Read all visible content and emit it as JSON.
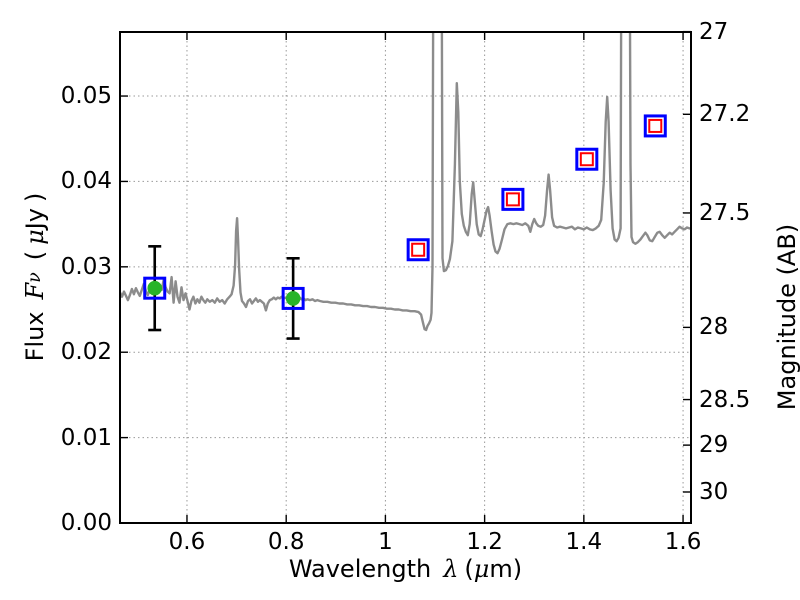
{
  "figure": {
    "background": "#ffffff",
    "axes_edge_color": "#000000",
    "grid_color": "#9a9a9a"
  },
  "labels": {
    "xlabel": {
      "word": "Wavelength",
      "lambda": "λ",
      "open": "(",
      "mu": "μ",
      "close": "m)"
    },
    "ylabel_left": {
      "word": "Flux",
      "f": "F",
      "nu": "ν",
      "open": "(",
      "mu": "μ",
      "jy": "Jy",
      "close": ")"
    },
    "ylabel_right": "Magnitude (AB)"
  },
  "chart_data": {
    "type": "line",
    "title": "",
    "xlabel": "Wavelength λ (μm)",
    "ylabel": "Flux Fν ( μJy )",
    "ylabel_right": "Magnitude (AB)",
    "xlim": [
      0.465,
      1.616
    ],
    "ylim": [
      0.0,
      0.0575
    ],
    "grid": "dotted",
    "x_ticks": [
      0.6,
      0.8,
      1.0,
      1.2,
      1.4,
      1.6
    ],
    "x_tick_labels": [
      "0.6",
      "0.8",
      "1",
      "1.2",
      "1.4",
      "1.6"
    ],
    "y_ticks_left": [
      0.0,
      0.01,
      0.02,
      0.03,
      0.04,
      0.05
    ],
    "y_tick_labels_left": [
      "0.00",
      "0.01",
      "0.02",
      "0.03",
      "0.04",
      "0.05"
    ],
    "y_ticks_right_mag": [
      27,
      27.2,
      27.5,
      28,
      28.5,
      29,
      30
    ],
    "y_tick_labels_right": [
      "27",
      "27.2",
      "27.5",
      "28",
      "28.5",
      "29",
      "30"
    ],
    "series": [
      {
        "name": "model-spectrum",
        "type": "line",
        "color": "#8c8c8c",
        "linewidth": 2.4,
        "points": [
          [
            0.465,
            0.027
          ],
          [
            0.469,
            0.0265
          ],
          [
            0.473,
            0.0271
          ],
          [
            0.477,
            0.0266
          ],
          [
            0.481,
            0.0261
          ],
          [
            0.485,
            0.0267
          ],
          [
            0.489,
            0.0274
          ],
          [
            0.493,
            0.0268
          ],
          [
            0.497,
            0.0275
          ],
          [
            0.501,
            0.027
          ],
          [
            0.505,
            0.0266
          ],
          [
            0.509,
            0.0273
          ],
          [
            0.513,
            0.028
          ],
          [
            0.517,
            0.0272
          ],
          [
            0.521,
            0.0267
          ],
          [
            0.525,
            0.0273
          ],
          [
            0.529,
            0.027
          ],
          [
            0.533,
            0.0275
          ],
          [
            0.537,
            0.0273
          ],
          [
            0.541,
            0.0271
          ],
          [
            0.545,
            0.0279
          ],
          [
            0.549,
            0.0273
          ],
          [
            0.553,
            0.0285
          ],
          [
            0.557,
            0.0276
          ],
          [
            0.561,
            0.0271
          ],
          [
            0.565,
            0.0269
          ],
          [
            0.569,
            0.0288
          ],
          [
            0.573,
            0.0258
          ],
          [
            0.577,
            0.0283
          ],
          [
            0.581,
            0.0265
          ],
          [
            0.585,
            0.0258
          ],
          [
            0.589,
            0.0276
          ],
          [
            0.593,
            0.0261
          ],
          [
            0.597,
            0.0269
          ],
          [
            0.601,
            0.026
          ],
          [
            0.605,
            0.025
          ],
          [
            0.609,
            0.026
          ],
          [
            0.613,
            0.0265
          ],
          [
            0.617,
            0.0257
          ],
          [
            0.621,
            0.0262
          ],
          [
            0.625,
            0.0258
          ],
          [
            0.629,
            0.0265
          ],
          [
            0.633,
            0.0261
          ],
          [
            0.637,
            0.0258
          ],
          [
            0.641,
            0.0262
          ],
          [
            0.646,
            0.0259
          ],
          [
            0.651,
            0.0261
          ],
          [
            0.656,
            0.0258
          ],
          [
            0.661,
            0.0263
          ],
          [
            0.666,
            0.0259
          ],
          [
            0.671,
            0.0261
          ],
          [
            0.676,
            0.0257
          ],
          [
            0.681,
            0.0262
          ],
          [
            0.686,
            0.0265
          ],
          [
            0.69,
            0.0268
          ],
          [
            0.694,
            0.0278
          ],
          [
            0.697,
            0.0302
          ],
          [
            0.699,
            0.0342
          ],
          [
            0.701,
            0.0357
          ],
          [
            0.703,
            0.0331
          ],
          [
            0.705,
            0.0298
          ],
          [
            0.708,
            0.027
          ],
          [
            0.711,
            0.026
          ],
          [
            0.715,
            0.0257
          ],
          [
            0.719,
            0.0253
          ],
          [
            0.723,
            0.026
          ],
          [
            0.727,
            0.0262
          ],
          [
            0.731,
            0.0257
          ],
          [
            0.735,
            0.026
          ],
          [
            0.739,
            0.0263
          ],
          [
            0.743,
            0.0259
          ],
          [
            0.747,
            0.0261
          ],
          [
            0.751,
            0.0259
          ],
          [
            0.755,
            0.0257
          ],
          [
            0.759,
            0.0249
          ],
          [
            0.763,
            0.0257
          ],
          [
            0.767,
            0.0261
          ],
          [
            0.771,
            0.0262
          ],
          [
            0.775,
            0.0264
          ],
          [
            0.779,
            0.0262
          ],
          [
            0.783,
            0.0264
          ],
          [
            0.787,
            0.0263
          ],
          [
            0.791,
            0.0265
          ],
          [
            0.795,
            0.0263
          ],
          [
            0.799,
            0.0264
          ],
          [
            0.803,
            0.0262
          ],
          [
            0.807,
            0.0264
          ],
          [
            0.811,
            0.0265
          ],
          [
            0.815,
            0.0264
          ],
          [
            0.819,
            0.0265
          ],
          [
            0.823,
            0.0263
          ],
          [
            0.827,
            0.0264
          ],
          [
            0.831,
            0.0262
          ],
          [
            0.835,
            0.0263
          ],
          [
            0.839,
            0.0261
          ],
          [
            0.843,
            0.0262
          ],
          [
            0.848,
            0.0261
          ],
          [
            0.853,
            0.0262
          ],
          [
            0.858,
            0.026
          ],
          [
            0.863,
            0.0261
          ],
          [
            0.868,
            0.026
          ],
          [
            0.875,
            0.0259
          ],
          [
            0.883,
            0.0259
          ],
          [
            0.891,
            0.0258
          ],
          [
            0.899,
            0.0258
          ],
          [
            0.907,
            0.0257
          ],
          [
            0.915,
            0.0257
          ],
          [
            0.923,
            0.0256
          ],
          [
            0.931,
            0.0256
          ],
          [
            0.939,
            0.0255
          ],
          [
            0.947,
            0.0255
          ],
          [
            0.955,
            0.0254
          ],
          [
            0.963,
            0.0254
          ],
          [
            0.971,
            0.0253
          ],
          [
            0.979,
            0.0253
          ],
          [
            0.987,
            0.0252
          ],
          [
            0.995,
            0.0252
          ],
          [
            1.003,
            0.0251
          ],
          [
            1.011,
            0.0251
          ],
          [
            1.019,
            0.025
          ],
          [
            1.027,
            0.025
          ],
          [
            1.035,
            0.0249
          ],
          [
            1.043,
            0.0249
          ],
          [
            1.051,
            0.0248
          ],
          [
            1.059,
            0.0248
          ],
          [
            1.067,
            0.0247
          ],
          [
            1.072,
            0.0244
          ],
          [
            1.076,
            0.0234
          ],
          [
            1.079,
            0.0227
          ],
          [
            1.082,
            0.0226
          ],
          [
            1.085,
            0.0231
          ],
          [
            1.088,
            0.0234
          ],
          [
            1.091,
            0.0238
          ],
          [
            1.093,
            0.0246
          ],
          [
            1.095,
            0.03
          ],
          [
            1.097,
            0.075
          ],
          [
            1.113,
            0.075
          ],
          [
            1.115,
            0.031
          ],
          [
            1.118,
            0.0295
          ],
          [
            1.122,
            0.0296
          ],
          [
            1.126,
            0.0301
          ],
          [
            1.13,
            0.0309
          ],
          [
            1.135,
            0.033
          ],
          [
            1.14,
            0.042
          ],
          [
            1.144,
            0.0515
          ],
          [
            1.147,
            0.0481
          ],
          [
            1.15,
            0.04
          ],
          [
            1.154,
            0.0362
          ],
          [
            1.158,
            0.0348
          ],
          [
            1.162,
            0.0341
          ],
          [
            1.166,
            0.0337
          ],
          [
            1.17,
            0.035
          ],
          [
            1.174,
            0.0385
          ],
          [
            1.177,
            0.0399
          ],
          [
            1.18,
            0.0378
          ],
          [
            1.184,
            0.035
          ],
          [
            1.188,
            0.0338
          ],
          [
            1.192,
            0.0336
          ],
          [
            1.196,
            0.0344
          ],
          [
            1.2,
            0.0355
          ],
          [
            1.204,
            0.0366
          ],
          [
            1.207,
            0.037
          ],
          [
            1.21,
            0.036
          ],
          [
            1.214,
            0.0342
          ],
          [
            1.218,
            0.0326
          ],
          [
            1.222,
            0.0318
          ],
          [
            1.226,
            0.0316
          ],
          [
            1.23,
            0.0321
          ],
          [
            1.235,
            0.0332
          ],
          [
            1.24,
            0.0344
          ],
          [
            1.246,
            0.035
          ],
          [
            1.252,
            0.0351
          ],
          [
            1.258,
            0.035
          ],
          [
            1.264,
            0.0351
          ],
          [
            1.27,
            0.035
          ],
          [
            1.276,
            0.0349
          ],
          [
            1.282,
            0.0351
          ],
          [
            1.288,
            0.0348
          ],
          [
            1.292,
            0.0341
          ],
          [
            1.296,
            0.035
          ],
          [
            1.3,
            0.0356
          ],
          [
            1.304,
            0.0351
          ],
          [
            1.308,
            0.0348
          ],
          [
            1.313,
            0.0347
          ],
          [
            1.318,
            0.0349
          ],
          [
            1.322,
            0.036
          ],
          [
            1.326,
            0.039
          ],
          [
            1.329,
            0.0408
          ],
          [
            1.332,
            0.039
          ],
          [
            1.336,
            0.0358
          ],
          [
            1.34,
            0.0348
          ],
          [
            1.346,
            0.0346
          ],
          [
            1.352,
            0.0347
          ],
          [
            1.358,
            0.0346
          ],
          [
            1.364,
            0.0345
          ],
          [
            1.37,
            0.0346
          ],
          [
            1.376,
            0.0347
          ],
          [
            1.382,
            0.0344
          ],
          [
            1.388,
            0.0346
          ],
          [
            1.394,
            0.0345
          ],
          [
            1.4,
            0.0344
          ],
          [
            1.406,
            0.0346
          ],
          [
            1.412,
            0.0344
          ],
          [
            1.418,
            0.0343
          ],
          [
            1.424,
            0.0345
          ],
          [
            1.43,
            0.0348
          ],
          [
            1.435,
            0.0355
          ],
          [
            1.44,
            0.0398
          ],
          [
            1.444,
            0.047
          ],
          [
            1.447,
            0.0499
          ],
          [
            1.45,
            0.047
          ],
          [
            1.454,
            0.039
          ],
          [
            1.458,
            0.0345
          ],
          [
            1.462,
            0.0332
          ],
          [
            1.466,
            0.033
          ],
          [
            1.47,
            0.0334
          ],
          [
            1.474,
            0.0345
          ],
          [
            1.476,
            0.075
          ],
          [
            1.492,
            0.075
          ],
          [
            1.494,
            0.042
          ],
          [
            1.496,
            0.0335
          ],
          [
            1.499,
            0.0329
          ],
          [
            1.504,
            0.0327
          ],
          [
            1.509,
            0.0329
          ],
          [
            1.514,
            0.0332
          ],
          [
            1.519,
            0.0336
          ],
          [
            1.524,
            0.034
          ],
          [
            1.528,
            0.0337
          ],
          [
            1.533,
            0.0331
          ],
          [
            1.538,
            0.033
          ],
          [
            1.543,
            0.0335
          ],
          [
            1.548,
            0.034
          ],
          [
            1.553,
            0.0341
          ],
          [
            1.558,
            0.0337
          ],
          [
            1.563,
            0.0334
          ],
          [
            1.568,
            0.0337
          ],
          [
            1.573,
            0.034
          ],
          [
            1.578,
            0.0338
          ],
          [
            1.583,
            0.0341
          ],
          [
            1.588,
            0.0344
          ],
          [
            1.593,
            0.0347
          ],
          [
            1.598,
            0.0345
          ],
          [
            1.603,
            0.0344
          ],
          [
            1.608,
            0.0346
          ],
          [
            1.613,
            0.0345
          ],
          [
            1.616,
            0.0345
          ]
        ]
      },
      {
        "name": "observed-photometry",
        "type": "scatter",
        "marker": "green-circle-in-blue-square-with-errorbar",
        "circle_color": "#28b428",
        "square_color": "#0000ff",
        "errorbar_color": "#000000",
        "points": [
          {
            "wavelength_um": 0.535,
            "flux_ujy": 0.0275,
            "flux_err_ujy": 0.0049
          },
          {
            "wavelength_um": 0.814,
            "flux_ujy": 0.0263,
            "flux_err_ujy": 0.0047
          }
        ]
      },
      {
        "name": "predicted-photometry",
        "type": "scatter",
        "marker": "open-red-square-in-open-blue-square",
        "outer_square_color": "#0000ff",
        "inner_square_color": "#ff0000",
        "points": [
          {
            "wavelength_um": 1.066,
            "flux_ujy": 0.032
          },
          {
            "wavelength_um": 1.257,
            "flux_ujy": 0.0379
          },
          {
            "wavelength_um": 1.406,
            "flux_ujy": 0.0426
          },
          {
            "wavelength_um": 1.544,
            "flux_ujy": 0.0465
          }
        ]
      }
    ]
  }
}
